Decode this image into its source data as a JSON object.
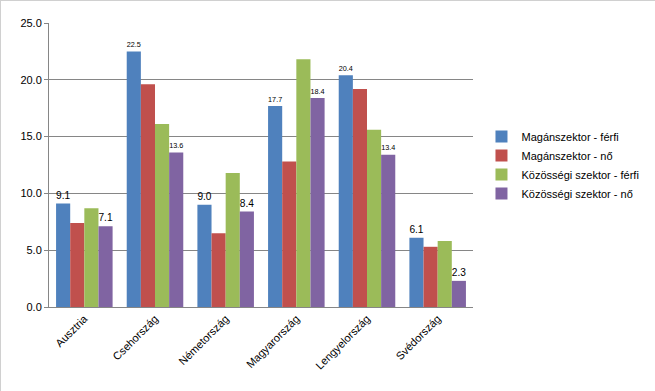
{
  "chart_data": {
    "type": "bar",
    "categories": [
      "Ausztria",
      "Csehország",
      "Németország",
      "Magyarország",
      "Lengyelország",
      "Svédország"
    ],
    "series": [
      {
        "name": "Magánszektor - férfi",
        "color": "#4f81bd",
        "values": [
          9.1,
          22.5,
          9.0,
          17.7,
          20.4,
          6.1
        ],
        "data_labels": true,
        "value_labels": [
          "9.1",
          "22.5",
          "9.0",
          "17.7",
          "20.4",
          "6.1"
        ]
      },
      {
        "name": "Magánszektor - nő",
        "color": "#c0504d",
        "values": [
          7.4,
          19.6,
          6.5,
          12.8,
          19.2,
          5.3
        ]
      },
      {
        "name": "Közösségi szektor - férfi",
        "color": "#9bbb59",
        "values": [
          8.7,
          16.1,
          11.8,
          21.8,
          15.6,
          5.8
        ]
      },
      {
        "name": "Közösségi szektor - nő",
        "color": "#8064a2",
        "values": [
          7.1,
          13.6,
          8.4,
          18.4,
          13.4,
          2.3
        ],
        "data_labels": true
      }
    ],
    "ylim": [
      0,
      25
    ],
    "yticks": [
      {
        "value": 0,
        "label": "0.0"
      },
      {
        "value": 5,
        "label": "5.0"
      },
      {
        "value": 10,
        "label": "10.0"
      },
      {
        "value": 15,
        "label": "15.0"
      },
      {
        "value": 20,
        "label": "20.0"
      },
      {
        "value": 25,
        "label": "25.0"
      }
    ],
    "grid": true,
    "legend": "right"
  }
}
